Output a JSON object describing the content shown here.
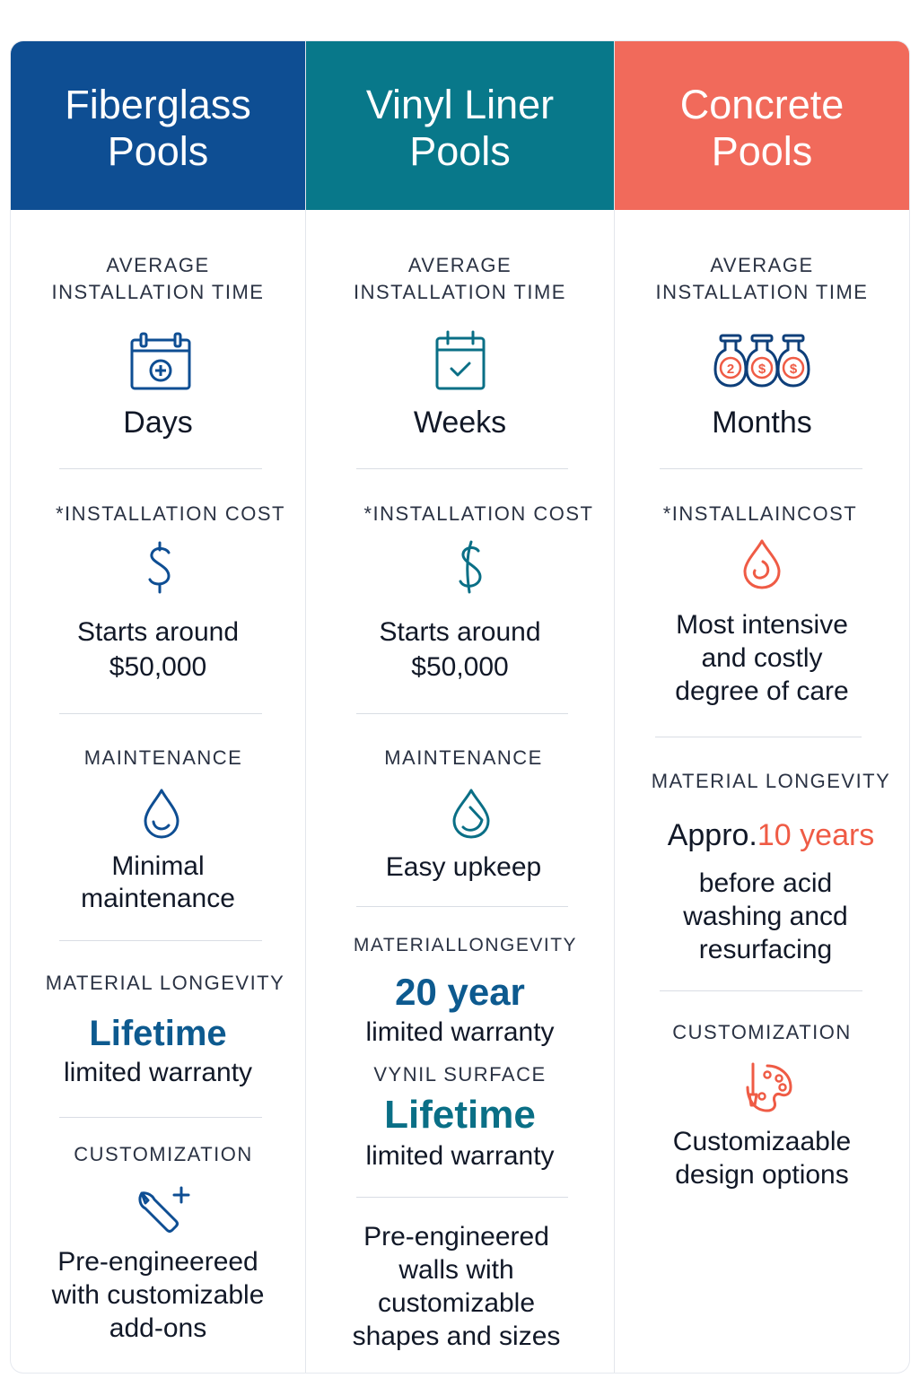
{
  "columns": [
    {
      "title": "Fiberglass\nPools",
      "color": "#0e4e93",
      "install_label": "AVERAGE\nINSTALLATION TIME",
      "install_icon": "calendar-plus-icon",
      "install_value": "Days",
      "cost_label": "*INSTALLATION COST",
      "cost_icon": "dollar-icon",
      "cost_value": "Starts around\n$50,000",
      "maint_label": "MAINTENANCE",
      "maint_icon": "water-drop-icon",
      "maint_value": "Minimal\nmaintenance",
      "longevity_label": "MATERIAL LONGEVITY",
      "longevity_highlight": "Lifetime",
      "longevity_sub": "limited warranty",
      "custom_label": "CUSTOMIZATION",
      "custom_icon": "wrench-plus-icon",
      "custom_value": "Pre-engineereed\nwith customizable\nadd-ons"
    },
    {
      "title": "Vinyl Liner\nPools",
      "color": "#08788a",
      "install_label": "AVERAGE\nINSTALLATION TIME",
      "install_icon": "calendar-check-icon",
      "install_value": "Weeks",
      "cost_label": "*INSTALLATION COST",
      "cost_icon": "dollar-icon",
      "cost_value": "Starts around\n$50,000",
      "maint_label": "MAINTENANCE",
      "maint_icon": "water-drop-icon",
      "maint_value": "Easy upkeep",
      "longevity_label": "MATERIALLONGEVITY",
      "longevity_highlight": "20 year",
      "longevity_sub": "limited warranty",
      "surface_label": "VYNIL SURFACE",
      "surface_highlight": "Lifetime",
      "surface_sub": "limited warranty",
      "custom_value": "Pre-engineered\nwalls with\ncustomizable\nshapes and sizes"
    },
    {
      "title": "Concrete\nPools",
      "color": "#f16a5b",
      "install_label": "AVERAGE\nINSTALLATION TIME",
      "install_icon": "money-bags-icon",
      "install_bag_labels": [
        "2",
        "$",
        "$"
      ],
      "install_value": "Months",
      "cost_label": "*INSTALLAINCOST",
      "cost_icon": "water-drop-icon",
      "cost_value": "Most intensive\nand costly\ndegree of care",
      "longevity_label": "MATERIAL LONGEVITY",
      "longevity_prefix": "Appro.",
      "longevity_highlight": "10 years",
      "longevity_sub": "before acid\nwashing ancd\nresurfacing",
      "custom_label": "CUSTOMIZATION",
      "custom_icon": "palette-brush-icon",
      "custom_value": "Customizaable\ndesign options"
    }
  ]
}
